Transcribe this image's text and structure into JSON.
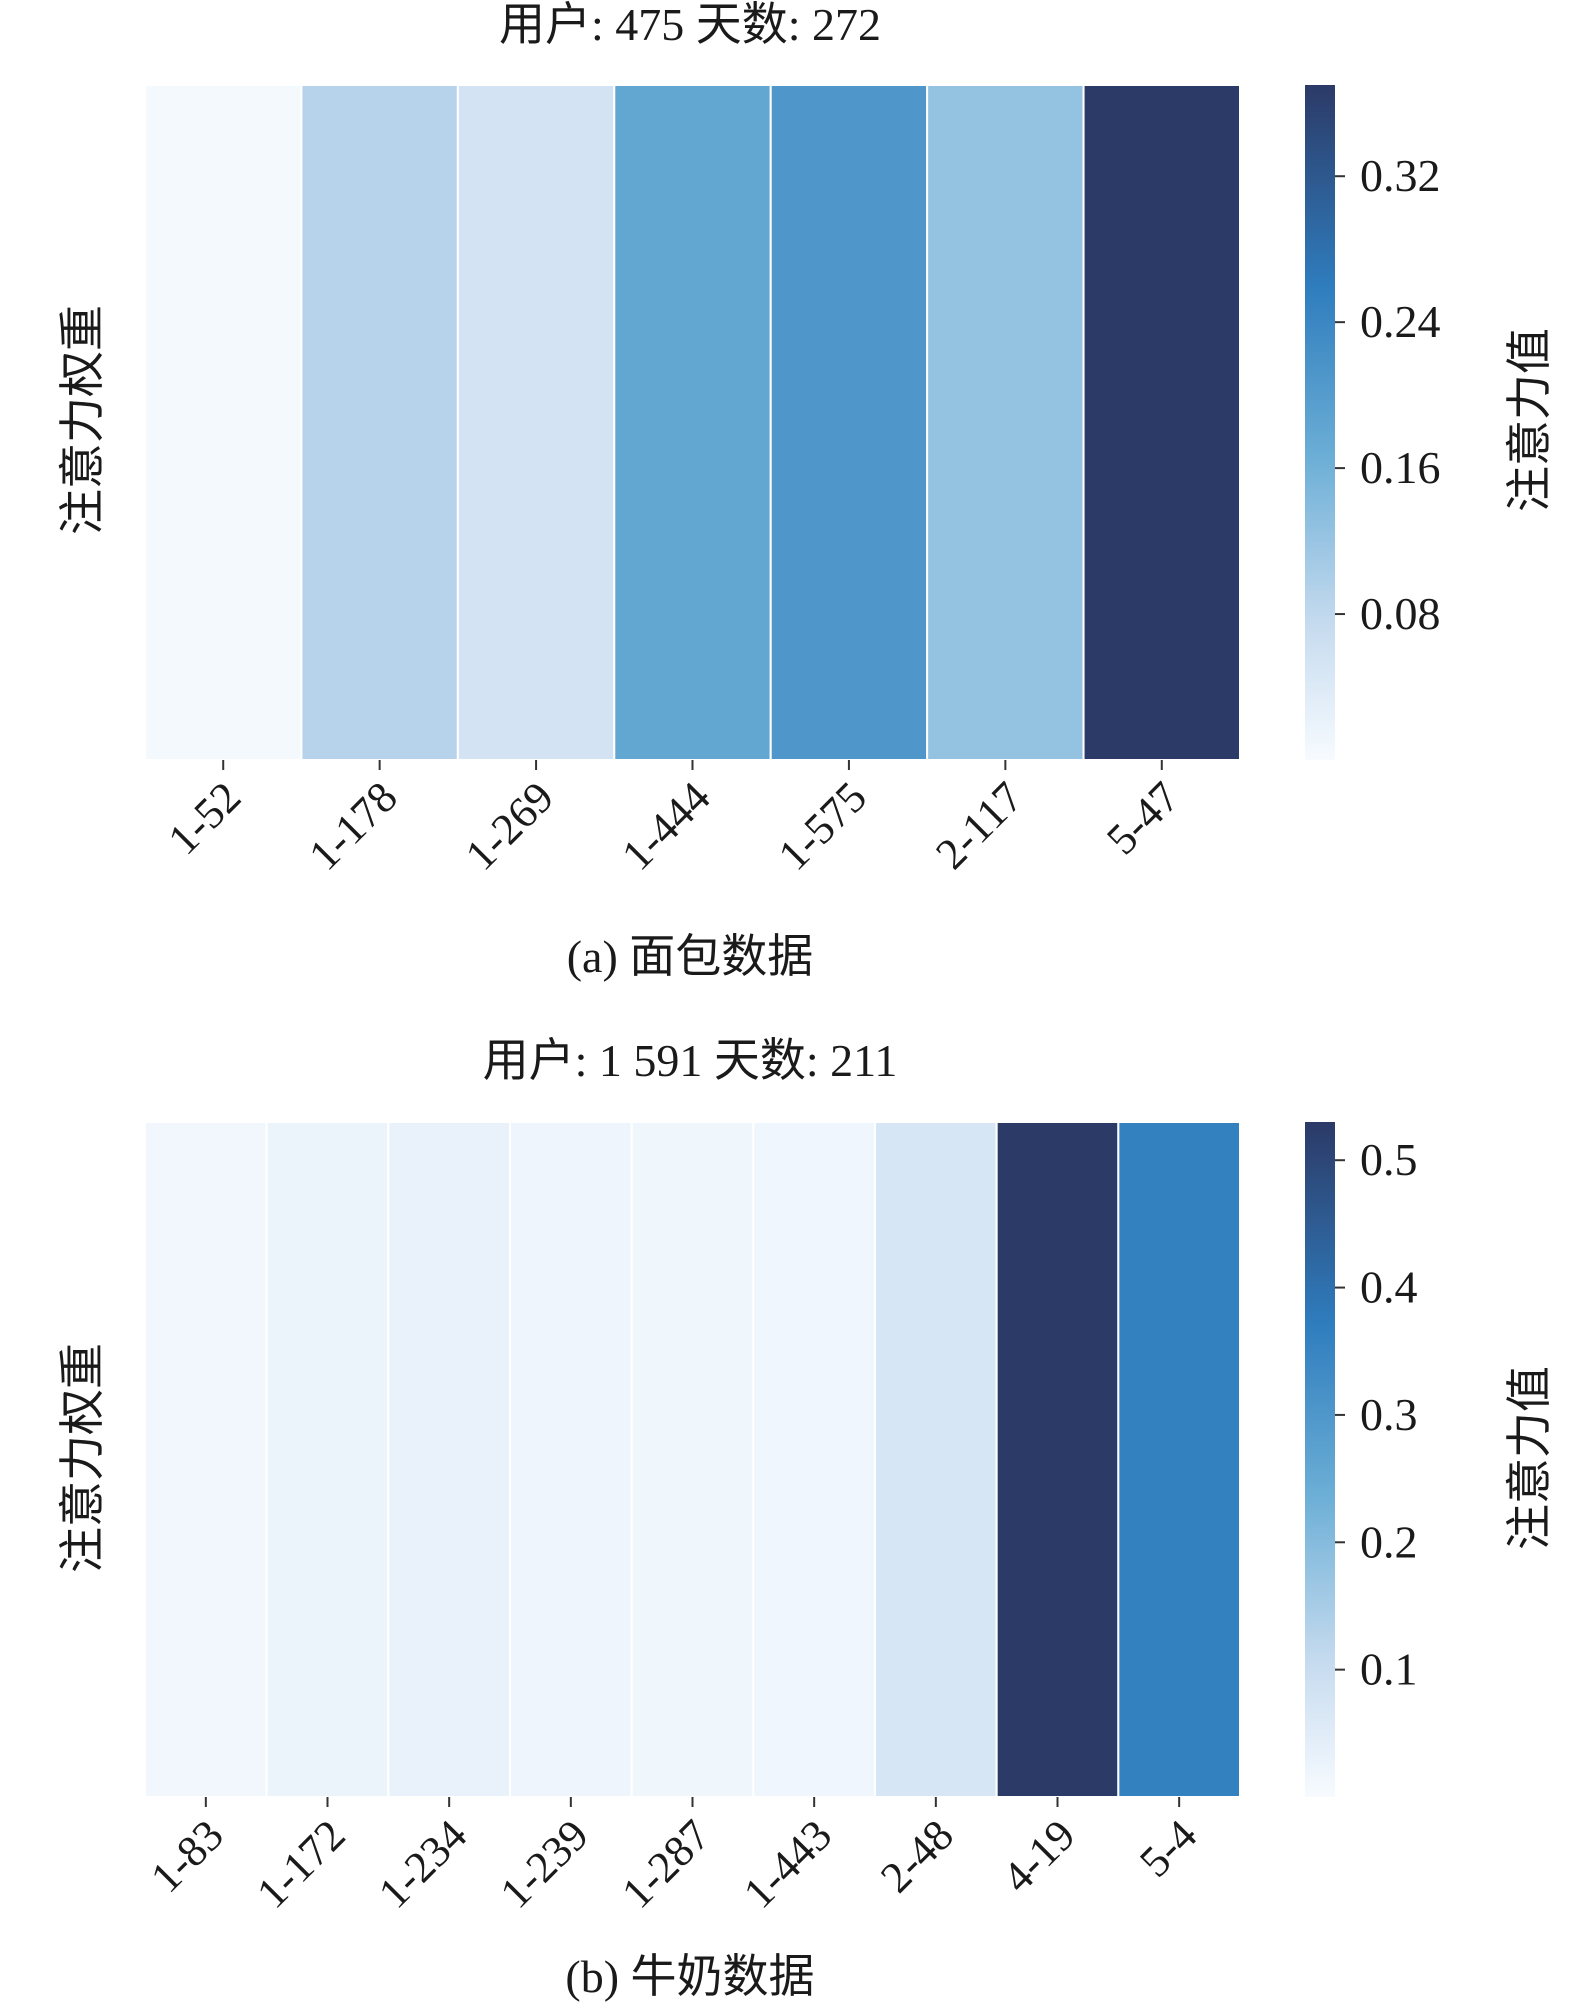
{
  "colors": {
    "scale_low": "#f7fbff",
    "scale_mid1": "#c6dbef",
    "scale_mid2": "#6baed6",
    "scale_mid3": "#2f7dbe",
    "scale_high": "#2c3a67",
    "cell_border": "#ffffff",
    "text": "#1a1a1a"
  },
  "chart_data": [
    {
      "type": "heatmap",
      "title": "用户: 475   天数: 272",
      "ylabel": "注意力权重",
      "colorbar_label": "注意力值",
      "caption": "(a)  面包数据",
      "categories": [
        "1-52",
        "1-178",
        "1-269",
        "1-444",
        "1-575",
        "2-117",
        "5-47"
      ],
      "values": [
        0.005,
        0.09,
        0.055,
        0.18,
        0.21,
        0.125,
        0.37
      ],
      "color_range": [
        0.0,
        0.37
      ],
      "colorbar_ticks": [
        "0.08",
        "0.16",
        "0.24",
        "0.32"
      ],
      "colorbar_tick_values": [
        0.08,
        0.16,
        0.24,
        0.32
      ],
      "grid": false
    },
    {
      "type": "heatmap",
      "title": "用户: 1 591   天数: 211",
      "ylabel": "注意力权重",
      "colorbar_label": "注意力值",
      "caption": "(b)  牛奶数据",
      "categories": [
        "1-83",
        "1-172",
        "1-234",
        "1-239",
        "1-287",
        "1-443",
        "2-48",
        "4-19",
        "5-4"
      ],
      "values": [
        0.012,
        0.025,
        0.03,
        0.02,
        0.018,
        0.015,
        0.07,
        0.53,
        0.36
      ],
      "color_range": [
        0.0,
        0.53
      ],
      "colorbar_ticks": [
        "0.1",
        "0.2",
        "0.3",
        "0.4",
        "0.5"
      ],
      "colorbar_tick_values": [
        0.1,
        0.2,
        0.3,
        0.4,
        0.5
      ],
      "grid": false
    }
  ]
}
